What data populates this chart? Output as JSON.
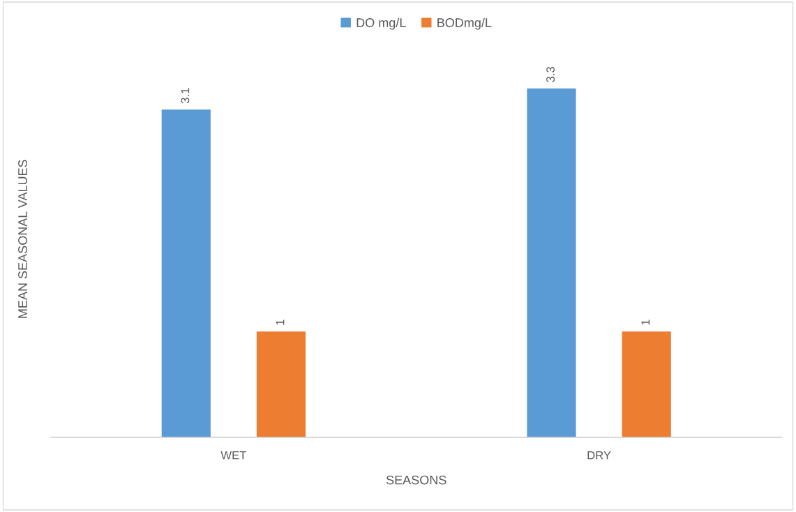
{
  "chart_data": {
    "type": "bar",
    "xlabel": "SEASONS",
    "ylabel": "MEAN SEASONAL VALUES",
    "categories": [
      "WET",
      "DRY"
    ],
    "series": [
      {
        "name": "DO mg/L",
        "color": "#5b9bd5",
        "values": [
          3.1,
          3.3
        ]
      },
      {
        "name": "BODmg/L",
        "color": "#ed7d31",
        "values": [
          1,
          1
        ]
      }
    ],
    "data_labels": true,
    "legend": "top",
    "grid": false
  }
}
